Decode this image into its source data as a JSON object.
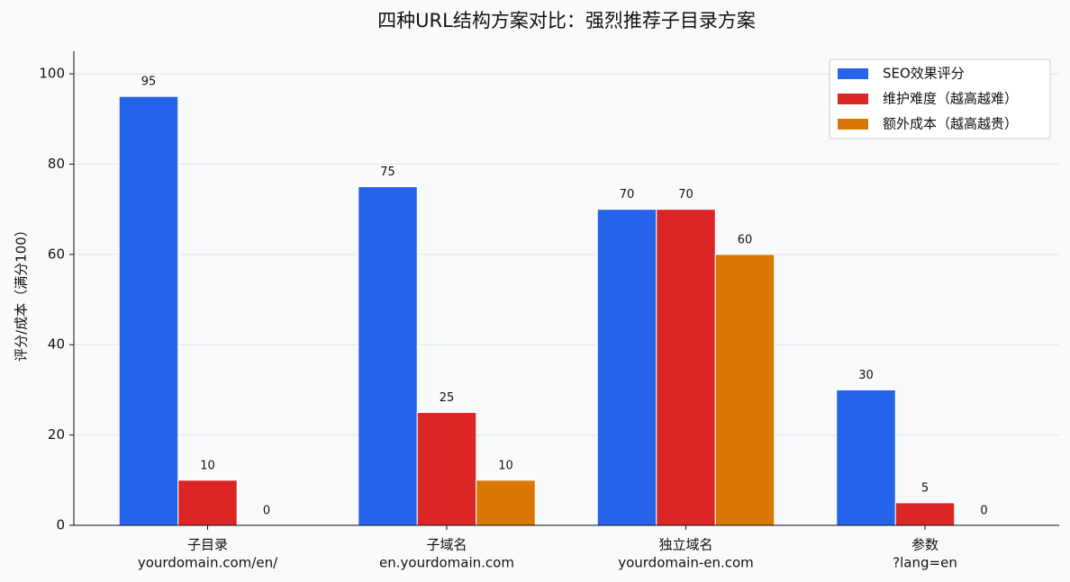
{
  "chart_data": {
    "type": "bar",
    "title": "四种URL结构方案对比：强烈推荐子目录方案",
    "y_label": "评分/成本（满分100）",
    "categories": [
      [
        "子目录",
        "yourdomain.com/en/"
      ],
      [
        "子域名",
        "en.yourdomain.com"
      ],
      [
        "独立域名",
        "yourdomain-en.com"
      ],
      [
        "参数",
        "?lang=en"
      ]
    ],
    "series": [
      {
        "name": "SEO效果评分",
        "color": "#2563eb",
        "values": [
          95,
          75,
          70,
          30
        ]
      },
      {
        "name": "维护难度（越高越难）",
        "color": "#dc2626",
        "values": [
          10,
          25,
          70,
          5
        ]
      },
      {
        "name": "额外成本（越高越贵）",
        "color": "#d97706",
        "values": [
          0,
          10,
          60,
          0
        ]
      }
    ],
    "ylim": [
      0,
      105
    ],
    "yticks": [
      0,
      20,
      40,
      60,
      80,
      100
    ],
    "grid": true,
    "legend": "upper right"
  }
}
